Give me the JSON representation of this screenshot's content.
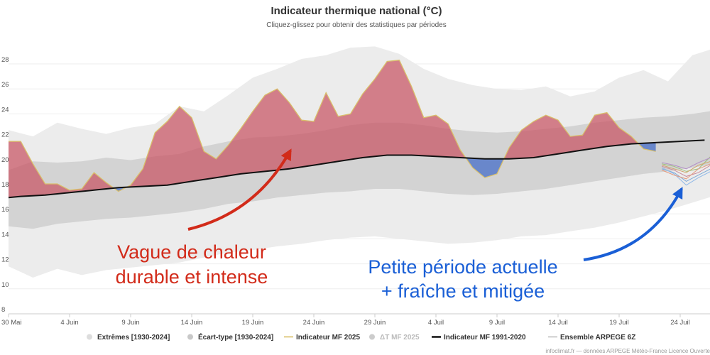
{
  "chart_data": {
    "type": "area",
    "title": "Indicateur thermique national (°C)",
    "subtitle": "Cliquez-glissez pour obtenir des statistiques par périodes",
    "x_start": "30 Mai",
    "x_end": "26 Juil",
    "ylim": [
      8,
      29.5
    ],
    "y_ticks": [
      8,
      10,
      12,
      14,
      16,
      18,
      20,
      22,
      24,
      26,
      28
    ],
    "x_ticks": [
      {
        "day": 0,
        "label": "30 Mai"
      },
      {
        "day": 5,
        "label": "4 Juin"
      },
      {
        "day": 10,
        "label": "9 Juin"
      },
      {
        "day": 15,
        "label": "14 Juin"
      },
      {
        "day": 20,
        "label": "19 Juin"
      },
      {
        "day": 25,
        "label": "24 Juin"
      },
      {
        "day": 30,
        "label": "29 Juin"
      },
      {
        "day": 35,
        "label": "4 Juil"
      },
      {
        "day": 40,
        "label": "9 Juil"
      },
      {
        "day": 45,
        "label": "14 Juil"
      },
      {
        "day": 50,
        "label": "19 Juil"
      },
      {
        "day": 55,
        "label": "24 Juil"
      }
    ],
    "grid": "horizontal",
    "legend_position": "bottom",
    "legend": [
      {
        "label": "Extrêmes [1930-2024]",
        "symbol": "dot",
        "color": "#dddddd",
        "muted": false
      },
      {
        "label": "Écart-type [1930-2024]",
        "symbol": "dot",
        "color": "#c8c8c8",
        "muted": false
      },
      {
        "label": "Indicateur MF 2025",
        "symbol": "line",
        "color": "#d6b85a",
        "muted": false
      },
      {
        "label": "ΔT MF 2025",
        "symbol": "dot",
        "color": "#cccccc",
        "muted": true
      },
      {
        "label": "Indicateur MF 1991-2020",
        "symbol": "line",
        "color": "#111111",
        "muted": false
      },
      {
        "label": "Ensemble ARPEGE 6Z",
        "symbol": "line",
        "color": "#bbbbbb",
        "muted": false
      }
    ],
    "series": {
      "normal": {
        "name": "Indicateur MF 1991-2020",
        "x": [
          0,
          1,
          3,
          5,
          7,
          9,
          11,
          13,
          15,
          17,
          19,
          21,
          23,
          25,
          27,
          29,
          31,
          33,
          35,
          37,
          39,
          41,
          43,
          45,
          47,
          49,
          51,
          53,
          55,
          57
        ],
        "y": [
          17.3,
          17.4,
          17.5,
          17.7,
          17.9,
          18.1,
          18.2,
          18.3,
          18.6,
          18.9,
          19.2,
          19.4,
          19.6,
          19.9,
          20.2,
          20.5,
          20.7,
          20.7,
          20.6,
          20.5,
          20.4,
          20.4,
          20.5,
          20.8,
          21.1,
          21.4,
          21.6,
          21.7,
          21.8,
          21.9
        ]
      },
      "mf2025": {
        "name": "Indicateur MF 2025",
        "x": [
          0,
          1,
          2,
          3,
          4,
          5,
          6,
          7,
          8,
          9,
          10,
          11,
          12,
          13,
          14,
          15,
          16,
          17,
          18,
          19,
          20,
          21,
          22,
          23,
          24,
          25,
          26,
          27,
          28,
          29,
          30,
          31,
          32,
          33,
          34,
          35,
          36,
          37,
          38,
          39,
          40,
          41,
          42,
          43,
          44,
          45,
          46,
          47,
          48,
          49,
          50,
          51,
          52,
          53
        ],
        "y": [
          21.8,
          21.8,
          20.0,
          18.4,
          18.4,
          17.9,
          18.0,
          19.3,
          18.5,
          17.8,
          18.3,
          19.6,
          22.5,
          23.4,
          24.6,
          23.7,
          21.0,
          20.4,
          21.5,
          22.8,
          24.2,
          25.5,
          26.0,
          24.9,
          23.5,
          23.4,
          25.7,
          23.8,
          24.0,
          25.6,
          26.8,
          28.2,
          28.3,
          26.2,
          23.7,
          23.9,
          23.2,
          21.1,
          19.7,
          18.9,
          19.2,
          21.3,
          22.7,
          23.4,
          23.9,
          23.5,
          22.2,
          22.3,
          23.9,
          24.1,
          22.9,
          22.2,
          21.2,
          21.0
        ]
      },
      "extremes": {
        "name": "Extrêmes [1930-2024]",
        "x": [
          0,
          2,
          4,
          6,
          8,
          10,
          12,
          14,
          16,
          18,
          20,
          22,
          24,
          26,
          28,
          30,
          32,
          34,
          36,
          38,
          40,
          42,
          44,
          46,
          48,
          50,
          52,
          54,
          56,
          58
        ],
        "upper": [
          22.7,
          22.2,
          23.3,
          22.8,
          22.4,
          22.9,
          23.2,
          24.6,
          24.2,
          25.5,
          26.9,
          27.6,
          28.4,
          28.7,
          29.3,
          29.4,
          28.8,
          27.6,
          26.8,
          26.3,
          26.0,
          25.9,
          26.2,
          25.4,
          25.8,
          26.9,
          27.5,
          26.6,
          28.7,
          29.3
        ],
        "lower": [
          11.8,
          10.9,
          11.6,
          11.1,
          11.5,
          11.7,
          11.9,
          12.1,
          12.5,
          12.9,
          13.1,
          13.4,
          13.6,
          13.9,
          14.1,
          14.2,
          14.0,
          13.8,
          13.6,
          13.7,
          13.9,
          14.2,
          14.3,
          14.6,
          14.9,
          15.3,
          15.8,
          16.3,
          16.9,
          17.5
        ]
      },
      "stddev": {
        "name": "Écart-type [1930-2024]",
        "x": [
          0,
          2,
          4,
          6,
          8,
          10,
          12,
          14,
          16,
          18,
          20,
          22,
          24,
          26,
          28,
          30,
          32,
          34,
          36,
          38,
          40,
          42,
          44,
          46,
          48,
          50,
          52,
          54,
          56,
          58
        ],
        "upper": [
          19.5,
          20.2,
          20.1,
          20.2,
          20.5,
          20.3,
          20.6,
          20.8,
          21.4,
          21.8,
          22.1,
          22.2,
          22.4,
          22.7,
          23.1,
          23.3,
          23.3,
          23.1,
          22.8,
          22.6,
          22.5,
          22.6,
          22.8,
          23.0,
          23.3,
          23.5,
          23.7,
          23.8,
          24.0,
          24.3
        ],
        "lower": [
          15.0,
          14.8,
          15.2,
          15.4,
          15.6,
          15.7,
          15.9,
          16.1,
          16.4,
          16.8,
          17.0,
          17.3,
          17.5,
          17.7,
          17.8,
          18.0,
          18.0,
          17.8,
          17.6,
          17.5,
          17.6,
          17.8,
          18.0,
          18.3,
          18.6,
          18.9,
          19.2,
          19.4,
          19.7,
          20.0
        ]
      },
      "ensemble": {
        "name": "Ensemble ARPEGE 6Z",
        "x": [
          53.5,
          54.5,
          55.5,
          56.5,
          57.5
        ],
        "members": [
          {
            "y": [
              20.0,
              19.8,
              19.4,
              19.6,
              20.6
            ],
            "color": "#9bbf7a"
          },
          {
            "y": [
              19.8,
              19.5,
              19.0,
              19.3,
              19.9
            ],
            "color": "#c98a9a"
          },
          {
            "y": [
              19.6,
              19.3,
              18.6,
              19.1,
              19.6
            ],
            "color": "#7fa9d6"
          },
          {
            "y": [
              19.9,
              19.6,
              19.3,
              19.9,
              20.2
            ],
            "color": "#d2a56b"
          },
          {
            "y": [
              19.7,
              19.2,
              18.3,
              18.9,
              19.4
            ],
            "color": "#8fb8e8"
          },
          {
            "y": [
              20.1,
              19.9,
              19.6,
              20.1,
              20.5
            ],
            "color": "#b38fc7"
          },
          {
            "y": [
              19.5,
              19.1,
              18.8,
              19.6,
              20.0
            ],
            "color": "#e39a7f"
          }
        ]
      }
    },
    "annotations": [
      {
        "lines": [
          "Vague de chaleur",
          "durable et intense"
        ],
        "color": "#d22b1a"
      },
      {
        "lines": [
          "Petite période actuelle",
          "+ fraîche et mitigée"
        ],
        "color": "#1a5fd6"
      }
    ],
    "credit": "infoclimat.fr — données ARPEGE Météo-France Licence Ouverte"
  }
}
